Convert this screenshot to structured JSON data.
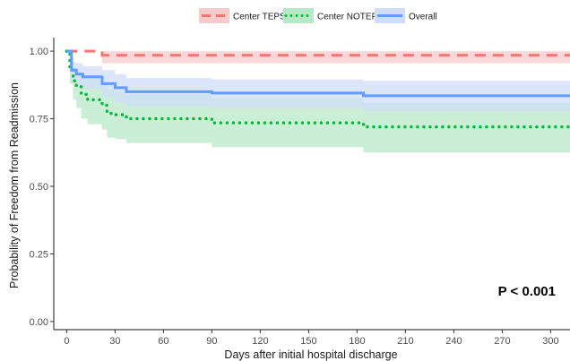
{
  "chart_data": {
    "type": "line",
    "subtype": "kaplan-meier survival curves with confidence bands",
    "xlabel": "Days after initial hospital discharge",
    "ylabel": "Probability of Freedom from Readmission",
    "xlim": [
      -8,
      312
    ],
    "ylim": [
      -0.03,
      1.05
    ],
    "x_ticks": [
      0,
      30,
      60,
      90,
      120,
      150,
      180,
      210,
      240,
      270,
      300
    ],
    "y_ticks": [
      0.0,
      0.25,
      0.5,
      0.75,
      1.0
    ],
    "y_tick_labels": [
      "0.00",
      "0.25",
      "0.50",
      "0.75",
      "1.00"
    ],
    "grid": false,
    "legend_position": "top",
    "annotation": "P < 0.001",
    "series": [
      {
        "name": "Center TEPS",
        "color": "#f8766d",
        "band_color": "#f4cccc",
        "line_style": "dashed",
        "x": [
          0,
          22,
          312
        ],
        "y": [
          1.0,
          0.985,
          0.985
        ],
        "lower": [
          1.0,
          0.955,
          0.955
        ],
        "upper": [
          1.0,
          1.0,
          1.0
        ]
      },
      {
        "name": "Center NOTEP",
        "color": "#00ba38",
        "band_color": "#b9e8c8",
        "line_style": "dotted",
        "x": [
          0,
          2,
          4,
          6,
          9,
          13,
          22,
          25,
          30,
          37,
          90,
          184,
          312
        ],
        "y": [
          1.0,
          0.93,
          0.89,
          0.87,
          0.84,
          0.82,
          0.8,
          0.77,
          0.765,
          0.75,
          0.735,
          0.72,
          0.72
        ],
        "lower": [
          1.0,
          0.88,
          0.82,
          0.79,
          0.75,
          0.73,
          0.71,
          0.68,
          0.675,
          0.66,
          0.645,
          0.625,
          0.625
        ],
        "upper": [
          1.0,
          0.97,
          0.94,
          0.93,
          0.91,
          0.9,
          0.88,
          0.86,
          0.85,
          0.84,
          0.825,
          0.81,
          0.81
        ]
      },
      {
        "name": "Overall",
        "color": "#619cff",
        "band_color": "#d0ddf8",
        "line_style": "solid",
        "x": [
          0,
          3,
          6,
          10,
          22,
          30,
          37,
          90,
          184,
          312
        ],
        "y": [
          1.0,
          0.93,
          0.915,
          0.905,
          0.88,
          0.865,
          0.85,
          0.845,
          0.835,
          0.835
        ],
        "lower": [
          1.0,
          0.89,
          0.87,
          0.86,
          0.83,
          0.81,
          0.795,
          0.79,
          0.778,
          0.778
        ],
        "upper": [
          1.0,
          0.96,
          0.955,
          0.945,
          0.93,
          0.915,
          0.9,
          0.895,
          0.89,
          0.89
        ]
      }
    ]
  }
}
